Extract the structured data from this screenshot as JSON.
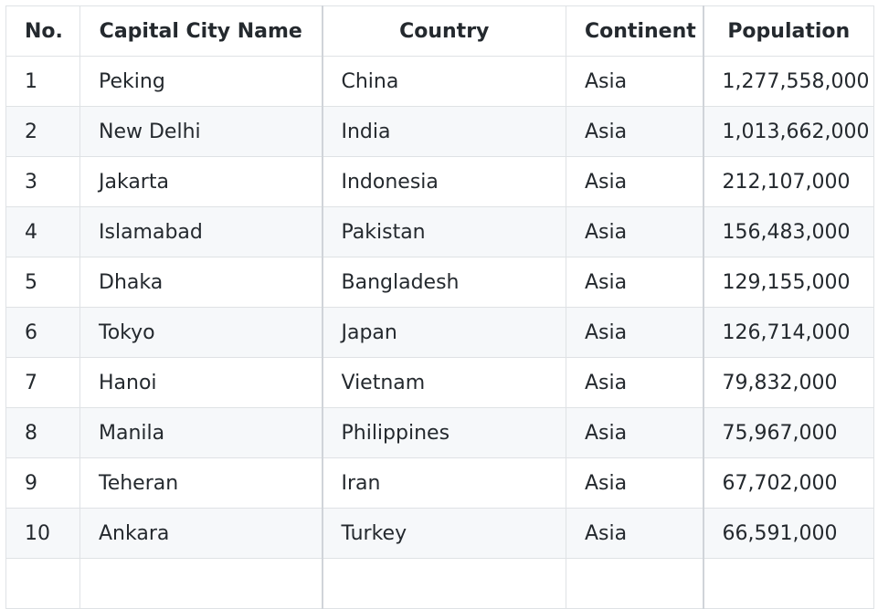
{
  "table": {
    "headers": {
      "no": "No.",
      "city": "Capital City Name",
      "country": "Country",
      "continent": "Continent",
      "population": "Population"
    },
    "rows": [
      {
        "no": "1",
        "city": "Peking",
        "country": "China",
        "continent": "Asia",
        "population": "1,277,558,000"
      },
      {
        "no": "2",
        "city": "New Delhi",
        "country": "India",
        "continent": "Asia",
        "population": "1,013,662,000"
      },
      {
        "no": "3",
        "city": "Jakarta",
        "country": "Indonesia",
        "continent": "Asia",
        "population": "212,107,000"
      },
      {
        "no": "4",
        "city": "Islamabad",
        "country": "Pakistan",
        "continent": "Asia",
        "population": "156,483,000"
      },
      {
        "no": "5",
        "city": "Dhaka",
        "country": "Bangladesh",
        "continent": "Asia",
        "population": "129,155,000"
      },
      {
        "no": "6",
        "city": "Tokyo",
        "country": "Japan",
        "continent": "Asia",
        "population": "126,714,000"
      },
      {
        "no": "7",
        "city": "Hanoi",
        "country": "Vietnam",
        "continent": "Asia",
        "population": "79,832,000"
      },
      {
        "no": "8",
        "city": "Manila",
        "country": "Philippines",
        "continent": "Asia",
        "population": "75,967,000"
      },
      {
        "no": "9",
        "city": "Teheran",
        "country": "Iran",
        "continent": "Asia",
        "population": "67,702,000"
      },
      {
        "no": "10",
        "city": "Ankara",
        "country": "Turkey",
        "continent": "Asia",
        "population": "66,591,000"
      },
      {
        "no": "",
        "city": "",
        "country": "",
        "continent": "",
        "population": ""
      }
    ]
  },
  "colors": {
    "border": "#dfe2e5",
    "stripe": "#f6f8fa",
    "text": "#24292e"
  }
}
